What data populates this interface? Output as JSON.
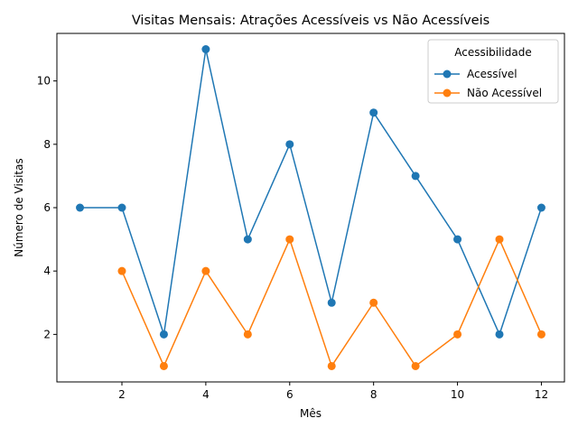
{
  "chart_data": {
    "type": "line",
    "title": "Visitas Mensais: Atrações Acessíveis vs Não Acessíveis",
    "xlabel": "Mês",
    "ylabel": "Número de Visitas",
    "xlim": [
      0.45,
      12.55
    ],
    "ylim": [
      0.5,
      11.5
    ],
    "x_ticks": [
      2,
      4,
      6,
      8,
      10,
      12
    ],
    "y_ticks": [
      2,
      4,
      6,
      8,
      10
    ],
    "grid": false,
    "legend": {
      "title": "Acessibilidade",
      "placement": "upper-right"
    },
    "series": [
      {
        "name": "Acessível",
        "color": "#1f77b4",
        "marker": "circle",
        "x": [
          1,
          2,
          3,
          4,
          5,
          6,
          7,
          8,
          9,
          10,
          11,
          12
        ],
        "y": [
          6,
          6,
          2,
          11,
          5,
          8,
          3,
          9,
          7,
          5,
          2,
          6
        ]
      },
      {
        "name": "Não Acessível",
        "color": "#ff7f0e",
        "marker": "circle",
        "x": [
          2,
          3,
          4,
          5,
          6,
          7,
          8,
          9,
          10,
          11,
          12
        ],
        "y": [
          4,
          1,
          4,
          2,
          5,
          1,
          3,
          1,
          2,
          5,
          2
        ]
      }
    ]
  }
}
